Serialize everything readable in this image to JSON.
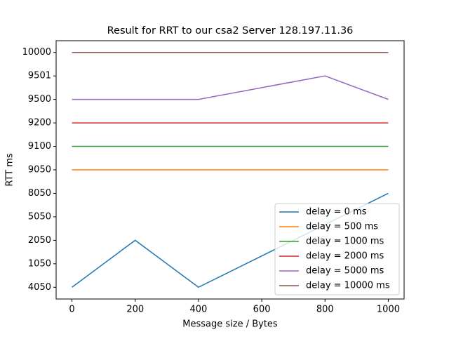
{
  "chart_data": {
    "type": "line",
    "title": "Result for RRT to our csa2 Server 128.197.11.36",
    "xlabel": "Message size / Bytes",
    "ylabel": "RTT ms",
    "xlim": [
      -50,
      1050
    ],
    "xticks": [
      0,
      200,
      400,
      600,
      800,
      1000
    ],
    "ylim": [
      -0.5,
      10.5
    ],
    "yticks": [
      {
        "value": 0,
        "label": "4050"
      },
      {
        "value": 1,
        "label": "1050"
      },
      {
        "value": 2,
        "label": "2050"
      },
      {
        "value": 3,
        "label": "5050"
      },
      {
        "value": 4,
        "label": "8050"
      },
      {
        "value": 5,
        "label": "9050"
      },
      {
        "value": 6,
        "label": "9100"
      },
      {
        "value": 7,
        "label": "9200"
      },
      {
        "value": 8,
        "label": "9500"
      },
      {
        "value": 9,
        "label": "9501"
      },
      {
        "value": 10,
        "label": "10000"
      }
    ],
    "legend": "lower right",
    "series": [
      {
        "name": "delay = 0 ms",
        "color": "#1f77b4",
        "x": [
          0,
          200,
          400,
          1000
        ],
        "values": [
          0,
          2,
          0,
          4
        ]
      },
      {
        "name": "delay = 500 ms",
        "color": "#ff7f0e",
        "x": [
          0,
          1000
        ],
        "values": [
          5,
          5
        ]
      },
      {
        "name": "delay = 1000 ms",
        "color": "#2ca02c",
        "x": [
          0,
          1000
        ],
        "values": [
          6,
          6
        ]
      },
      {
        "name": "delay = 2000 ms",
        "color": "#d62728",
        "x": [
          0,
          1000
        ],
        "values": [
          7,
          7
        ]
      },
      {
        "name": "delay = 5000 ms",
        "color": "#9467bd",
        "x": [
          0,
          400,
          800,
          1000
        ],
        "values": [
          8,
          8,
          9,
          8
        ]
      },
      {
        "name": "delay = 10000 ms",
        "color": "#8c564b",
        "x": [
          0,
          1000
        ],
        "values": [
          10,
          10
        ]
      }
    ]
  }
}
